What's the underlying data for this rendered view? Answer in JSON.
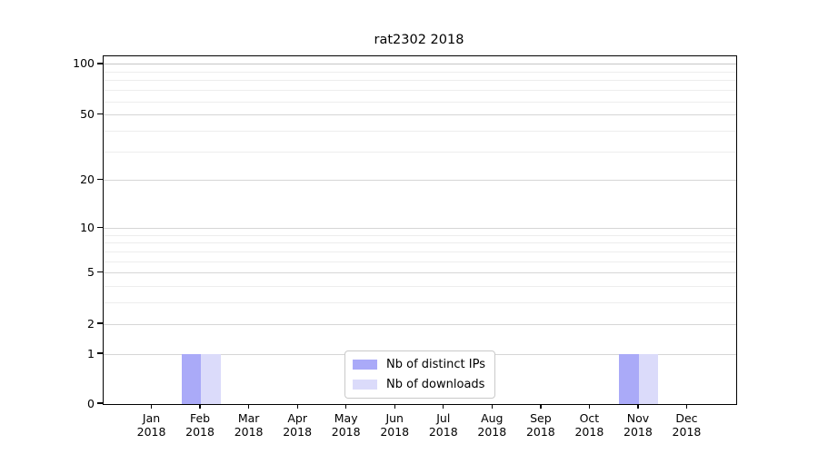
{
  "chart_data": {
    "type": "bar",
    "title": "rat2302 2018",
    "categories": [
      "Jan 2018",
      "Feb 2018",
      "Mar 2018",
      "Apr 2018",
      "May 2018",
      "Jun 2018",
      "Jul 2018",
      "Aug 2018",
      "Sep 2018",
      "Oct 2018",
      "Nov 2018",
      "Dec 2018"
    ],
    "x_tick_months": [
      "Jan",
      "Feb",
      "Mar",
      "Apr",
      "May",
      "Jun",
      "Jul",
      "Aug",
      "Sep",
      "Oct",
      "Nov",
      "Dec"
    ],
    "x_tick_year": "2018",
    "series": [
      {
        "name": "Nb of distinct IPs",
        "color": "#aaaaf8",
        "values": [
          0,
          1,
          0,
          0,
          0,
          0,
          0,
          0,
          0,
          0,
          1,
          0
        ]
      },
      {
        "name": "Nb of downloads",
        "color": "#dbdbfa",
        "values": [
          0,
          1,
          0,
          0,
          0,
          0,
          0,
          0,
          0,
          0,
          1,
          0
        ]
      }
    ],
    "y_axis": {
      "scale": "log10(1+y)",
      "range": [
        0,
        112
      ],
      "major_ticks": [
        0,
        1,
        2,
        5,
        10,
        20,
        50,
        100
      ],
      "minor_ticks": [
        3,
        4,
        6,
        7,
        8,
        9,
        30,
        40,
        60,
        70,
        80,
        90
      ],
      "grid": true
    },
    "legend": {
      "position": "lower center"
    }
  }
}
